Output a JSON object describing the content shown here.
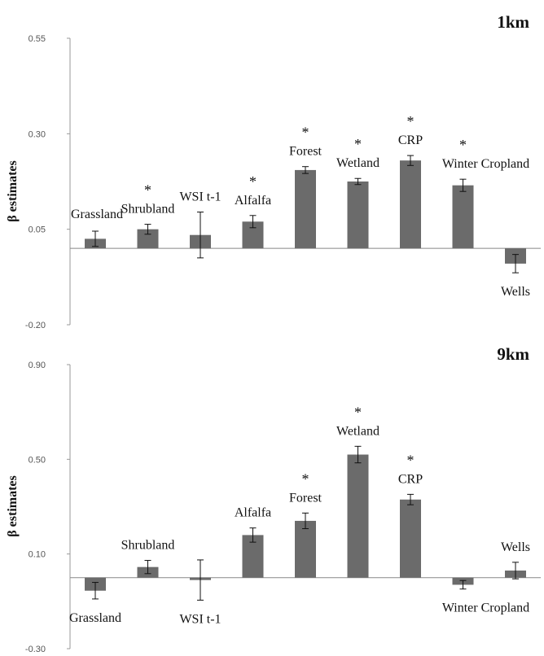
{
  "chart_data": [
    {
      "type": "bar",
      "title": "1km",
      "ylabel": "β estimates",
      "ylim": [
        -0.2,
        0.55
      ],
      "yticks": [
        "0.55",
        "0.30",
        "0.05",
        "-0.20"
      ],
      "categories": [
        "Grassland",
        "Shrubland",
        "WSI t-1",
        "Alfalfa",
        "Forest",
        "Wetland",
        "CRP",
        "Winter Cropland",
        "Wells"
      ],
      "values": [
        0.025,
        0.05,
        0.035,
        0.07,
        0.205,
        0.175,
        0.23,
        0.165,
        -0.04
      ],
      "errors": [
        0.02,
        0.013,
        0.06,
        0.016,
        0.009,
        0.008,
        0.013,
        0.016,
        0.024
      ],
      "significant": [
        false,
        true,
        false,
        true,
        true,
        true,
        true,
        true,
        false
      ]
    },
    {
      "type": "bar",
      "title": "9km",
      "ylabel": "β estimates",
      "ylim": [
        -0.3,
        0.9
      ],
      "yticks": [
        "0.90",
        "0.50",
        "0.10",
        "-0.30"
      ],
      "categories": [
        "Grassland",
        "Shrubland",
        "WSI t-1",
        "Alfalfa",
        "Forest",
        "Wetland",
        "CRP",
        "Winter Cropland",
        "Wells"
      ],
      "values": [
        -0.055,
        0.045,
        -0.01,
        0.18,
        0.24,
        0.52,
        0.33,
        -0.03,
        0.03
      ],
      "errors": [
        0.035,
        0.028,
        0.085,
        0.03,
        0.033,
        0.035,
        0.022,
        0.018,
        0.035
      ],
      "significant": [
        false,
        false,
        false,
        false,
        true,
        true,
        true,
        false,
        false
      ],
      "star_label": "*"
    }
  ]
}
